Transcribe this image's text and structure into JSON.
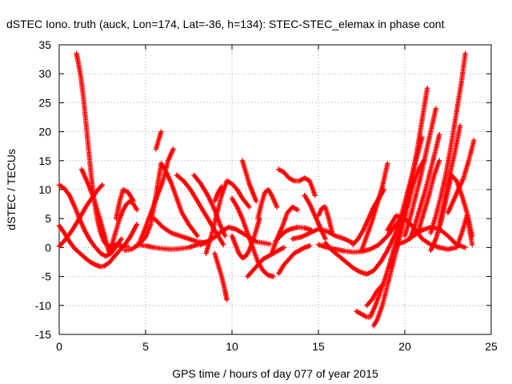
{
  "colors": {
    "series": "#ff0000",
    "grid": "#a0a0a0",
    "axis": "#000000"
  },
  "chart_data": {
    "type": "scatter",
    "marker": "plus",
    "title": "dSTEC Iono. truth (auck, Lon=174, Lat=-36, h=134): STEC-STEC_elemax in phase cont",
    "xlabel": "GPS time / hours of day 077 of year 2015",
    "ylabel": "dSTEC  / TECUs",
    "xlim": [
      0,
      25
    ],
    "ylim": [
      -15,
      35
    ],
    "x_ticks": [
      0,
      5,
      10,
      15,
      20,
      25
    ],
    "y_ticks": [
      -15,
      -10,
      -5,
      0,
      5,
      10,
      15,
      20,
      25,
      30,
      35
    ],
    "grid": true,
    "legend": "none",
    "series": [
      {
        "x": [
          1.0,
          1.1,
          1.25,
          1.4,
          1.55,
          1.7,
          1.85,
          2.0,
          2.2,
          2.4,
          2.6,
          2.8,
          3.0,
          3.3,
          3.6,
          4.0
        ],
        "y": [
          33.5,
          32.0,
          29.5,
          26.0,
          21.5,
          17.0,
          12.5,
          8.5,
          5.0,
          2.5,
          1.0,
          0.3,
          0.2,
          0.5,
          0.3,
          0.1
        ]
      },
      {
        "x": [
          0.0,
          0.3,
          0.6,
          0.9,
          1.2,
          1.5,
          1.8,
          2.1,
          2.4,
          2.7,
          3.0,
          3.3,
          3.6
        ],
        "y": [
          10.8,
          10.2,
          9.0,
          7.0,
          4.8,
          2.8,
          1.2,
          0.0,
          -1.0,
          -1.5,
          -1.0,
          0.2,
          1.5
        ]
      },
      {
        "x": [
          0.0,
          0.3,
          0.6,
          0.9,
          1.2,
          1.5,
          1.8,
          2.1,
          2.4,
          2.6,
          2.9,
          3.2,
          3.5,
          3.8,
          4.1,
          4.5
        ],
        "y": [
          3.8,
          2.5,
          1.0,
          -0.2,
          -1.0,
          -1.8,
          -2.5,
          -3.0,
          -3.3,
          -3.2,
          -2.6,
          -1.5,
          -0.5,
          0.5,
          1.8,
          4.0
        ]
      },
      {
        "x": [
          0.0,
          0.4,
          0.8,
          1.2,
          1.6,
          2.0,
          2.3,
          2.5
        ],
        "y": [
          0.2,
          1.5,
          3.2,
          5.2,
          7.3,
          9.0,
          10.2,
          10.8
        ]
      },
      {
        "x": [
          1.3,
          1.6,
          2.0,
          2.4,
          2.7,
          2.9
        ],
        "y": [
          13.5,
          11.5,
          8.5,
          4.5,
          1.2,
          -1.0
        ]
      },
      {
        "x": [
          2.9,
          3.1,
          3.3,
          3.5,
          3.7,
          3.9,
          4.1,
          4.3,
          4.5
        ],
        "y": [
          -1.0,
          1.0,
          3.0,
          5.0,
          6.5,
          7.5,
          8.0,
          7.5,
          6.5
        ]
      },
      {
        "x": [
          3.3,
          3.5,
          3.7,
          4.0,
          4.3
        ],
        "y": [
          5.0,
          8.0,
          10.0,
          9.5,
          8.0
        ]
      },
      {
        "x": [
          3.8,
          4.2,
          4.6,
          5.0,
          5.3,
          5.6,
          5.9
        ],
        "y": [
          -0.5,
          -0.3,
          0.5,
          1.8,
          4.0,
          9.0,
          14.5
        ]
      },
      {
        "x": [
          5.9,
          6.2,
          6.5,
          6.8,
          7.1,
          7.5,
          8.0
        ],
        "y": [
          14.5,
          13.0,
          11.0,
          8.5,
          6.0,
          4.0,
          2.0
        ]
      },
      {
        "x": [
          5.6,
          5.8,
          5.9
        ],
        "y": [
          17.0,
          19.0,
          20.0
        ]
      },
      {
        "x": [
          4.6,
          5.0,
          5.5,
          6.0,
          6.3,
          6.6
        ],
        "y": [
          0.5,
          3.5,
          7.5,
          11.5,
          15.0,
          17.0
        ]
      },
      {
        "x": [
          4.5,
          5.0,
          5.5,
          6.0,
          6.5,
          7.0,
          7.5,
          8.0,
          8.5
        ],
        "y": [
          0.5,
          0.3,
          0.0,
          -0.2,
          -0.3,
          -0.2,
          0.0,
          0.5,
          1.0
        ]
      },
      {
        "x": [
          5.5,
          6.0,
          6.5,
          7.0,
          7.5,
          8.0,
          8.5
        ],
        "y": [
          5.0,
          3.5,
          2.5,
          2.0,
          1.5,
          1.0,
          0.8
        ]
      },
      {
        "x": [
          6.8,
          7.2,
          7.6,
          8.0,
          8.4,
          8.8,
          9.2,
          9.5
        ],
        "y": [
          12.5,
          11.5,
          10.0,
          8.0,
          6.0,
          4.0,
          2.0,
          0.5
        ]
      },
      {
        "x": [
          7.8,
          8.2,
          8.6,
          9.0,
          9.3,
          9.6
        ],
        "y": [
          12.5,
          11.0,
          9.0,
          6.5,
          4.0,
          2.0
        ]
      },
      {
        "x": [
          9.0,
          9.2,
          9.4,
          9.6,
          9.7
        ],
        "y": [
          -1.0,
          -3.0,
          -5.0,
          -7.5,
          -9.0
        ]
      },
      {
        "x": [
          8.5,
          8.8,
          9.1,
          9.4,
          9.7,
          10.0,
          10.3,
          10.6,
          11.0
        ],
        "y": [
          -1.0,
          2.0,
          5.5,
          9.0,
          11.5,
          11.0,
          10.0,
          8.5,
          7.0
        ]
      },
      {
        "x": [
          9.0,
          9.2,
          9.4
        ],
        "y": [
          8.0,
          9.5,
          10.5
        ]
      },
      {
        "x": [
          8.2,
          8.6,
          9.0,
          9.4,
          9.8,
          10.2,
          10.6,
          11.0,
          11.4,
          11.8,
          12.2
        ],
        "y": [
          0.5,
          1.0,
          1.8,
          2.8,
          3.5,
          3.2,
          2.5,
          1.8,
          1.0,
          0.8,
          0.6
        ]
      },
      {
        "x": [
          10.0,
          10.3,
          10.6,
          10.9,
          11.2,
          11.5,
          11.8,
          12.1,
          12.4
        ],
        "y": [
          8.5,
          7.0,
          5.0,
          2.5,
          0.0,
          -2.5,
          -4.0,
          -4.8,
          -5.0
        ]
      },
      {
        "x": [
          10.9,
          11.2,
          11.5,
          11.8,
          12.1,
          12.4,
          12.7,
          13.0
        ],
        "y": [
          -5.0,
          -4.0,
          -3.0,
          -2.0,
          -1.5,
          -1.0,
          -0.5,
          0.0
        ]
      },
      {
        "x": [
          10.6,
          10.8,
          11.0,
          11.2,
          11.4
        ],
        "y": [
          15.0,
          13.0,
          11.0,
          9.5,
          8.0
        ]
      },
      {
        "x": [
          10.0,
          10.2,
          10.4,
          10.6,
          10.8,
          11.0,
          11.3,
          11.6
        ],
        "y": [
          2.0,
          0.5,
          -1.0,
          -1.8,
          -1.5,
          -0.5,
          2.0,
          5.0
        ]
      },
      {
        "x": [
          11.5,
          11.7,
          11.9,
          12.1,
          12.3,
          12.6
        ],
        "y": [
          5.0,
          7.5,
          9.5,
          10.0,
          9.0,
          7.0
        ]
      },
      {
        "x": [
          12.3,
          12.6,
          12.9,
          13.2,
          13.5,
          13.8
        ],
        "y": [
          -1.0,
          1.5,
          3.5,
          6.0,
          7.0,
          6.5
        ]
      },
      {
        "x": [
          12.5,
          12.8,
          13.1,
          13.4,
          13.8,
          14.2,
          14.6
        ],
        "y": [
          1.0,
          2.0,
          2.8,
          3.2,
          3.5,
          3.4,
          3.0
        ]
      },
      {
        "x": [
          12.7,
          13.0,
          13.3,
          13.6,
          13.9,
          14.2,
          14.5
        ],
        "y": [
          -4.5,
          -3.0,
          -2.0,
          -1.0,
          -0.5,
          0.0,
          0.3
        ]
      },
      {
        "x": [
          12.7,
          13.0,
          13.3,
          13.6,
          13.9,
          14.2,
          14.5,
          14.8
        ],
        "y": [
          13.5,
          13.0,
          12.0,
          11.5,
          11.5,
          12.0,
          11.5,
          9.0
        ]
      },
      {
        "x": [
          14.2,
          14.5,
          14.8,
          15.1,
          15.4
        ],
        "y": [
          9.0,
          7.5,
          5.5,
          3.5,
          1.5
        ]
      },
      {
        "x": [
          13.5,
          14.0,
          14.5,
          15.0,
          15.5,
          16.0,
          16.5,
          17.0
        ],
        "y": [
          1.5,
          1.8,
          2.5,
          3.2,
          2.8,
          2.0,
          1.5,
          0.8
        ]
      },
      {
        "x": [
          15.0,
          15.2,
          15.4,
          15.6,
          15.8
        ],
        "y": [
          5.5,
          6.8,
          7.0,
          5.0,
          2.5
        ]
      },
      {
        "x": [
          15.4,
          15.8,
          16.2,
          16.6,
          17.0,
          17.4,
          17.8,
          18.2,
          18.6,
          19.0,
          19.4,
          19.8,
          20.2,
          20.6,
          21.0
        ],
        "y": [
          0.8,
          -0.5,
          -1.5,
          -2.5,
          -3.5,
          -4.2,
          -4.6,
          -4.0,
          -2.5,
          -0.5,
          2.0,
          5.5,
          10.0,
          14.5,
          19.0
        ]
      },
      {
        "x": [
          15.0,
          15.5,
          16.0,
          16.5,
          17.0,
          17.5,
          18.0,
          18.5,
          19.0,
          19.5,
          20.0
        ],
        "y": [
          0.5,
          0.0,
          -0.3,
          -0.6,
          -0.8,
          -0.7,
          -0.3,
          0.5,
          2.0,
          4.0,
          6.0
        ]
      },
      {
        "x": [
          17.0,
          17.3,
          17.6,
          17.9,
          18.2,
          18.5,
          18.8
        ],
        "y": [
          0.5,
          1.5,
          3.0,
          5.0,
          7.0,
          8.5,
          10.0
        ]
      },
      {
        "x": [
          17.5,
          17.8,
          18.1,
          18.4,
          18.7,
          19.0
        ],
        "y": [
          -0.5,
          2.0,
          4.5,
          7.5,
          10.5,
          14.5
        ]
      },
      {
        "x": [
          17.2,
          17.5,
          17.8,
          18.0,
          18.3,
          18.6,
          18.9,
          19.2,
          19.5,
          19.8,
          20.1,
          20.4,
          20.7,
          21.0,
          21.3
        ],
        "y": [
          -11.0,
          -11.5,
          -12.0,
          -12.0,
          -10.0,
          -7.5,
          -5.0,
          -2.0,
          1.0,
          4.5,
          8.0,
          12.0,
          16.5,
          22.0,
          27.5
        ]
      },
      {
        "x": [
          18.2,
          18.4,
          18.7,
          19.0,
          19.3,
          19.6,
          19.9,
          20.2,
          20.5,
          20.8,
          21.1
        ],
        "y": [
          -13.5,
          -12.5,
          -10.0,
          -6.5,
          -3.0,
          0.5,
          4.0,
          7.5,
          11.0,
          13.5,
          15.0
        ]
      },
      {
        "x": [
          17.8,
          18.1,
          18.4,
          18.7
        ],
        "y": [
          -10.0,
          -9.0,
          -7.5,
          -6.5
        ]
      },
      {
        "x": [
          19.0,
          19.5,
          20.0,
          20.5,
          21.0,
          21.5,
          22.0
        ],
        "y": [
          3.0,
          5.5,
          5.0,
          3.5,
          1.5,
          0.5,
          0.0
        ]
      },
      {
        "x": [
          19.5,
          20.0,
          20.5,
          21.0,
          21.5,
          22.0,
          22.5,
          23.0,
          23.5
        ],
        "y": [
          0.5,
          1.0,
          2.0,
          3.0,
          3.5,
          3.2,
          2.0,
          0.5,
          0.0
        ]
      },
      {
        "x": [
          20.0,
          20.3,
          20.6,
          20.9,
          21.2,
          21.5,
          21.8
        ],
        "y": [
          2.0,
          5.0,
          8.5,
          12.0,
          16.0,
          20.0,
          24.0
        ]
      },
      {
        "x": [
          20.3,
          20.6,
          20.9,
          21.2,
          21.5,
          21.8,
          22.0
        ],
        "y": [
          1.5,
          4.0,
          7.0,
          10.0,
          13.5,
          17.0,
          19.5
        ]
      },
      {
        "x": [
          20.8,
          21.1,
          21.4,
          21.7,
          22.0
        ],
        "y": [
          3.0,
          6.0,
          9.0,
          12.5,
          15.0
        ]
      },
      {
        "x": [
          21.5,
          21.8,
          22.1,
          22.4,
          22.7,
          23.0,
          23.3,
          23.5
        ],
        "y": [
          2.5,
          5.5,
          9.0,
          13.0,
          18.0,
          23.5,
          29.0,
          33.5
        ]
      },
      {
        "x": [
          22.0,
          22.3,
          22.6,
          22.9,
          23.2
        ],
        "y": [
          4.0,
          8.0,
          12.5,
          16.5,
          21.0
        ]
      },
      {
        "x": [
          21.5,
          21.8,
          22.1,
          22.4,
          22.7,
          23.0,
          23.3,
          23.6,
          23.9
        ],
        "y": [
          -0.5,
          1.5,
          4.5,
          8.5,
          12.5,
          11.5,
          9.0,
          6.0,
          2.0
        ]
      },
      {
        "x": [
          22.5,
          22.8,
          23.1,
          23.4,
          23.7,
          24.0
        ],
        "y": [
          6.0,
          8.0,
          10.0,
          12.0,
          15.0,
          18.5
        ]
      },
      {
        "x": [
          22.0,
          22.5,
          23.0,
          23.3,
          23.6,
          23.9
        ],
        "y": [
          0.0,
          -0.3,
          0.0,
          2.5,
          5.5,
          0.5
        ]
      }
    ]
  }
}
